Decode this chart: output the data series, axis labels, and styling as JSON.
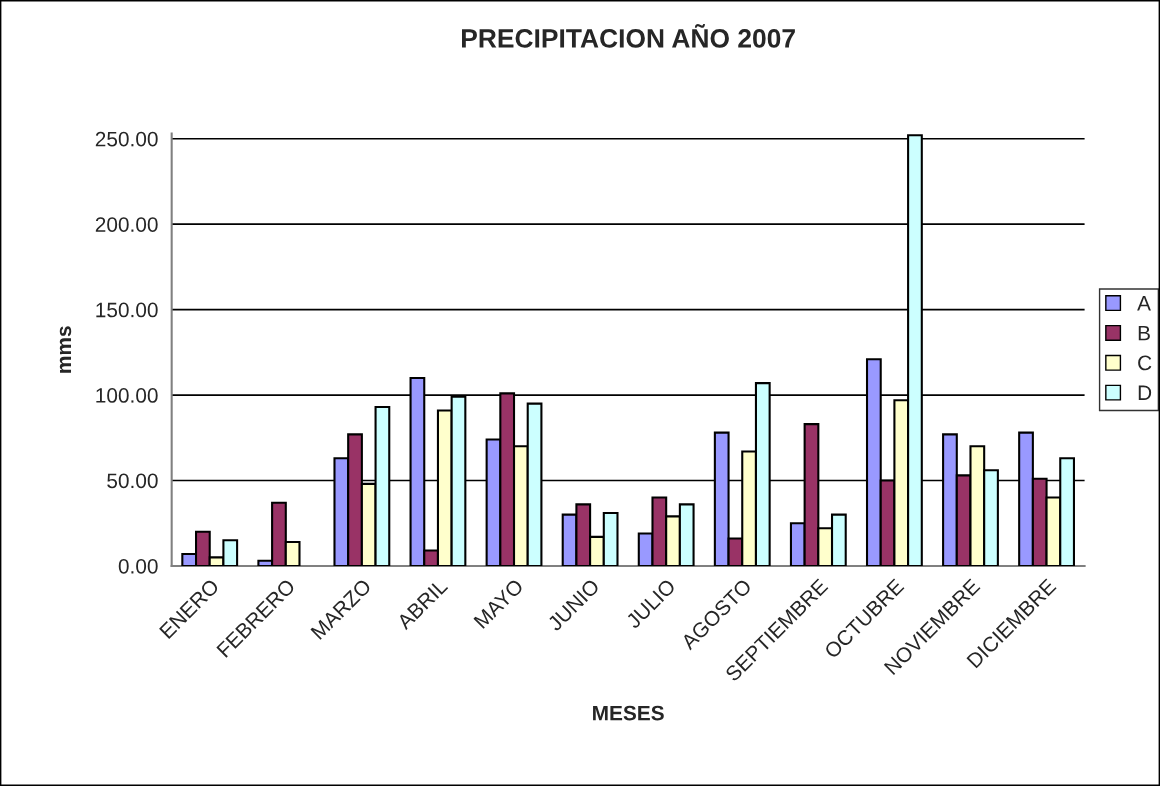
{
  "chart_data": {
    "type": "bar",
    "title": "PRECIPITACION AÑO 2007",
    "xlabel": "MESES",
    "ylabel": "mms",
    "categories": [
      "ENERO",
      "FEBRERO",
      "MARZO",
      "ABRIL",
      "MAYO",
      "JUNIO",
      "JULIO",
      "AGOSTO",
      "SEPTIEMBRE",
      "OCTUBRE",
      "NOVIEMBRE",
      "DICIEMBRE"
    ],
    "series": [
      {
        "name": "A",
        "color": "#9999ff",
        "values": [
          7,
          3,
          63,
          110,
          74,
          30,
          19,
          78,
          25,
          121,
          77,
          78
        ]
      },
      {
        "name": "B",
        "color": "#993366",
        "values": [
          20,
          37,
          77,
          9,
          101,
          36,
          40,
          16,
          83,
          50,
          53,
          51
        ]
      },
      {
        "name": "C",
        "color": "#ffffcc",
        "values": [
          5,
          14,
          48,
          91,
          70,
          17,
          29,
          67,
          22,
          97,
          70,
          40
        ]
      },
      {
        "name": "D",
        "color": "#ccffff",
        "values": [
          15,
          null,
          93,
          99,
          95,
          31,
          36,
          107,
          30,
          252,
          56,
          63
        ]
      }
    ],
    "ylim": [
      0,
      253
    ],
    "yticks": [
      {
        "value": 0,
        "label": "0.00"
      },
      {
        "value": 50,
        "label": "50.00"
      },
      {
        "value": 100,
        "label": "100.00"
      },
      {
        "value": 150,
        "label": "150.00"
      },
      {
        "value": 200,
        "label": "200.00"
      },
      {
        "value": 250,
        "label": "250.00"
      }
    ],
    "grid": "y",
    "legend": "right"
  }
}
